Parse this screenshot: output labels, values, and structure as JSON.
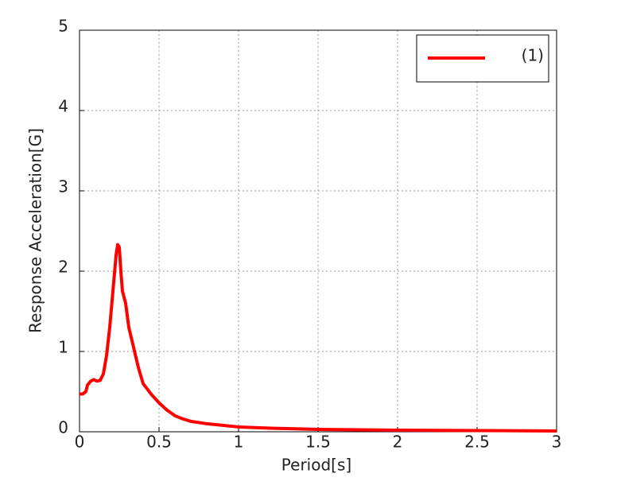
{
  "chart_data": {
    "type": "line",
    "xlabel": "Period[s]",
    "ylabel": "Response Acceleration[G]",
    "x": [
      0,
      0.02,
      0.04,
      0.05,
      0.07,
      0.09,
      0.11,
      0.13,
      0.15,
      0.17,
      0.19,
      0.21,
      0.23,
      0.24,
      0.25,
      0.26,
      0.27,
      0.29,
      0.31,
      0.34,
      0.37,
      0.4,
      0.45,
      0.5,
      0.55,
      0.6,
      0.65,
      0.7,
      0.8,
      0.9,
      1.0,
      1.2,
      1.5,
      2.0,
      2.5,
      3.0
    ],
    "series": [
      {
        "name": "(1)",
        "color": "#ff0000",
        "values": [
          0.47,
          0.47,
          0.5,
          0.58,
          0.63,
          0.65,
          0.63,
          0.64,
          0.72,
          0.95,
          1.3,
          1.75,
          2.2,
          2.33,
          2.3,
          2.0,
          1.75,
          1.6,
          1.3,
          1.05,
          0.8,
          0.6,
          0.47,
          0.36,
          0.27,
          0.2,
          0.16,
          0.13,
          0.1,
          0.08,
          0.06,
          0.045,
          0.03,
          0.02,
          0.015,
          0.01
        ]
      }
    ],
    "xlim": [
      0,
      3
    ],
    "xticks": [
      0,
      0.5,
      1,
      1.5,
      2,
      2.5,
      3
    ],
    "ylim": [
      0,
      5
    ],
    "yticks": [
      0,
      1,
      2,
      3,
      4,
      5
    ],
    "grid": true,
    "legend": "upper right"
  }
}
